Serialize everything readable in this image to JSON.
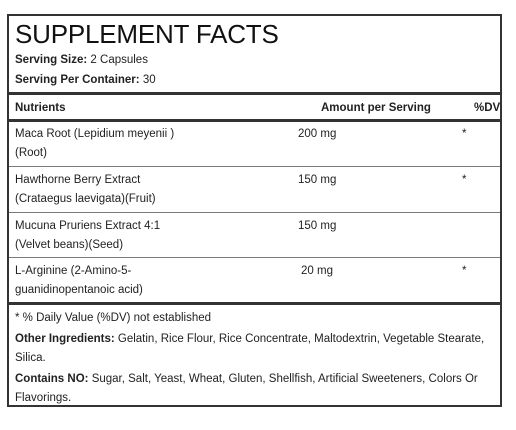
{
  "title": "SUPPLEMENT FACTS",
  "serving_size": {
    "label": "Serving Size:",
    "value": "2 Capsules"
  },
  "serving_per_container": {
    "label": "Serving Per Container:",
    "value": "30"
  },
  "table": {
    "headers": {
      "nutrients": "Nutrients",
      "amount": "Amount per Serving",
      "dv": "%DV"
    },
    "rows": [
      {
        "name_line1": "Maca Root (Lepidium meyenii )",
        "name_line2": "(Root)",
        "amount": "200 mg",
        "dv": "*"
      },
      {
        "name_line1": "Hawthorne Berry Extract",
        "name_line2": "(Crataegus laevigata)(Fruit)",
        "amount": "150 mg",
        "dv": "*"
      },
      {
        "name_line1": "Mucuna Pruriens Extract 4:1",
        "name_line2": "(Velvet beans)(Seed)",
        "amount": "150 mg",
        "dv": "*"
      },
      {
        "name_line1": "L-Arginine (2-Amino-5-",
        "name_line2": "guanidinopentanoic acid)",
        "amount": "20 mg",
        "dv": "*"
      }
    ]
  },
  "footnote": "* % Daily Value (%DV) not established",
  "other_ingredients": {
    "label": "Other Ingredients:",
    "line1": "Gelatin, Rice Flour, Rice Concentrate, Maltodextrin, Vegetable Stearate,",
    "line2": "Silica."
  },
  "contains_no": {
    "label": "Contains NO:",
    "line1": "Sugar, Salt, Yeast, Wheat, Gluten, Shellfish, Artificial Sweeteners, Colors Or",
    "line2": "Flavorings."
  }
}
